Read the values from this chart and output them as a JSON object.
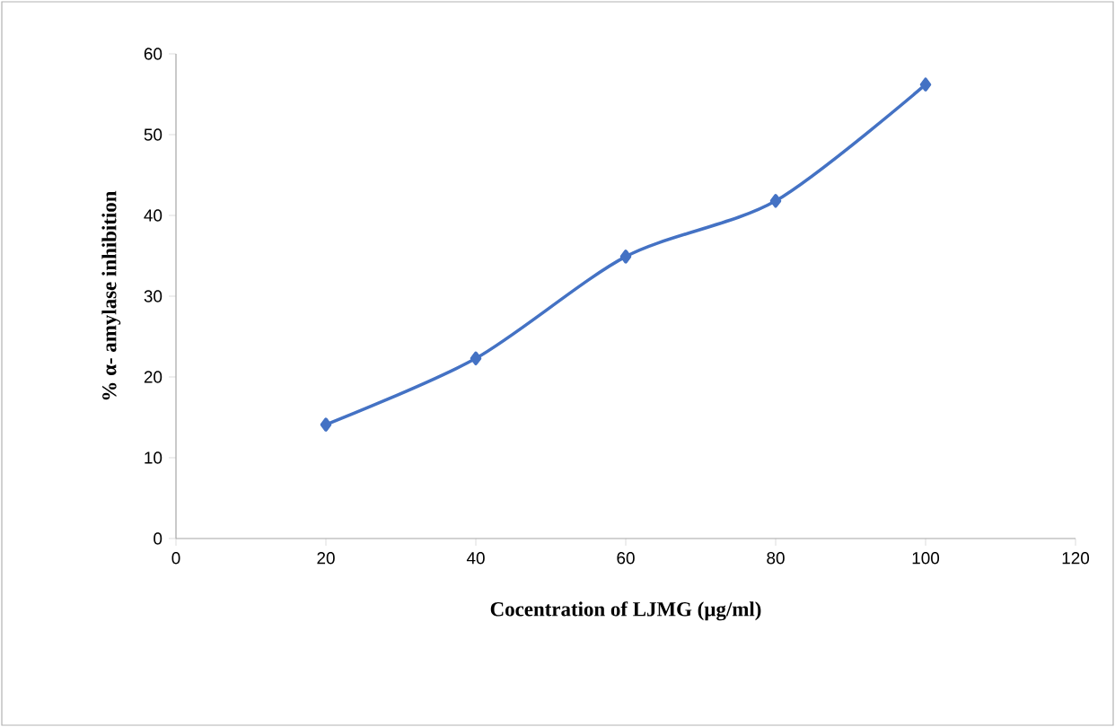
{
  "chart_data": {
    "type": "line",
    "xlabel": "Cocentration of LJMG (µg/ml)",
    "ylabel": "% α- amylase inhibition",
    "x": [
      20,
      40,
      60,
      80,
      100
    ],
    "series": [
      {
        "color": "#4472c4",
        "values": [
          14.1,
          22.3,
          34.9,
          41.8,
          56.2
        ]
      }
    ],
    "xlim": [
      0,
      120
    ],
    "ylim": [
      0,
      60
    ],
    "xticks": [
      0,
      20,
      40,
      60,
      80,
      100,
      120
    ],
    "yticks": [
      0,
      10,
      20,
      30,
      40,
      50,
      60
    ],
    "marker": "diamond",
    "line_style": "solid"
  }
}
